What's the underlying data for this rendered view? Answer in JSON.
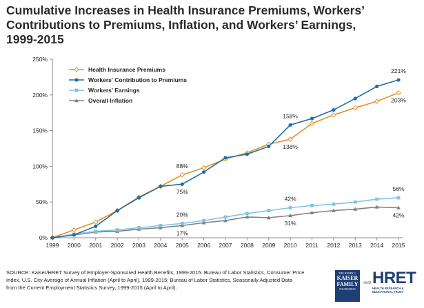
{
  "title_lines": [
    "Cumulative Increases in Health Insurance Premiums, Workers’",
    "Contributions to Premiums, Inflation, and Workers’ Earnings,",
    "1999-2015"
  ],
  "source_lines": [
    "SOURCE:  Kaiser/HRET Survey of Employer-Sponsored Health Benefits, 1999-2015.  Bureau of Labor Statistics, Consumer Price",
    "Index, U.S. City Average of Annual Inflation (April to April), 1999-2015; Bureau of Labor Statistics, Seasonally Adjusted Data",
    "from the Current Employment Statistics Survey, 1999-2015 (April to April)."
  ],
  "logos": {
    "kff": {
      "top": "THE HENRY J.",
      "line1": "KAISER",
      "line2": "FAMILY",
      "bottom": "FOUNDATION"
    },
    "and": "-AND-",
    "hret": {
      "name": "HRET",
      "line1": "HEALTH RESEARCH &",
      "line2": "EDUCATIONAL TRUST"
    }
  },
  "chart_data": {
    "type": "line",
    "title": "Cumulative Increases in Health Insurance Premiums, Workers’ Contributions to Premiums, Inflation, and Workers’ Earnings, 1999-2015",
    "xlabel": "",
    "ylabel": "",
    "x": [
      "1999",
      "2000",
      "2001",
      "2002",
      "2003",
      "2004",
      "2005",
      "2006",
      "2007",
      "2008",
      "2009",
      "2010",
      "2011",
      "2012",
      "2013",
      "2014",
      "2015"
    ],
    "ylim": [
      0,
      250
    ],
    "yticks": [
      0,
      50,
      100,
      150,
      200,
      250
    ],
    "ytick_labels": [
      "0%",
      "50%",
      "100%",
      "150%",
      "200%",
      "250%"
    ],
    "grid": false,
    "legend_position": "top-left",
    "series": [
      {
        "name": "Health Insurance Premiums",
        "color": "#e58e2a",
        "marker": "diamond",
        "values": [
          0,
          11,
          22,
          38,
          57,
          72,
          88,
          98,
          110,
          119,
          131,
          138,
          160,
          172,
          182,
          191,
          203
        ]
      },
      {
        "name": "Workers' Contribution to Premiums",
        "color": "#1d6fa5",
        "marker": "circle",
        "values": [
          0,
          4,
          16,
          38,
          56,
          72,
          75,
          92,
          112,
          117,
          128,
          158,
          167,
          179,
          195,
          212,
          221
        ]
      },
      {
        "name": "Workers' Earnings",
        "color": "#7ec4e6",
        "marker": "square",
        "values": [
          0,
          5,
          9,
          11,
          14,
          17,
          20,
          24,
          29,
          34,
          38,
          42,
          45,
          47,
          50,
          54,
          56
        ]
      },
      {
        "name": "Overall Inflation",
        "color": "#808080",
        "marker": "triangle",
        "values": [
          0,
          4,
          8,
          9,
          12,
          14,
          17,
          21,
          24,
          29,
          28,
          31,
          35,
          38,
          40,
          43,
          42
        ]
      }
    ],
    "annotations": [
      {
        "series": 0,
        "index": 6,
        "text": "88%",
        "pos": "above"
      },
      {
        "series": 1,
        "index": 6,
        "text": "75%",
        "pos": "below"
      },
      {
        "series": 2,
        "index": 6,
        "text": "20%",
        "pos": "above"
      },
      {
        "series": 3,
        "index": 6,
        "text": "17%",
        "pos": "below"
      },
      {
        "series": 1,
        "index": 11,
        "text": "158%",
        "pos": "above"
      },
      {
        "series": 0,
        "index": 11,
        "text": "138%",
        "pos": "below"
      },
      {
        "series": 2,
        "index": 11,
        "text": "42%",
        "pos": "above"
      },
      {
        "series": 3,
        "index": 11,
        "text": "31%",
        "pos": "below"
      },
      {
        "series": 1,
        "index": 16,
        "text": "221%",
        "pos": "above"
      },
      {
        "series": 0,
        "index": 16,
        "text": "203%",
        "pos": "below"
      },
      {
        "series": 2,
        "index": 16,
        "text": "56%",
        "pos": "above"
      },
      {
        "series": 3,
        "index": 16,
        "text": "42%",
        "pos": "below"
      }
    ]
  }
}
